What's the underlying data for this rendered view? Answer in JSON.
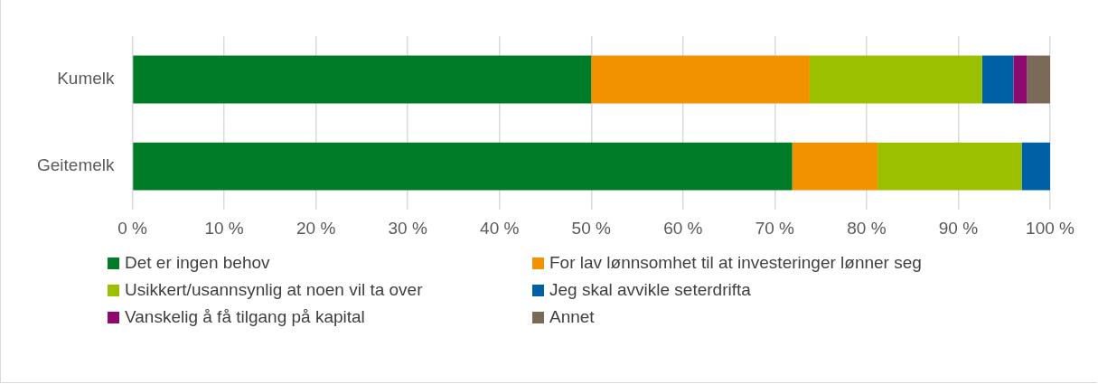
{
  "chart_data": {
    "type": "bar",
    "orientation": "horizontal",
    "stacked": true,
    "categories": [
      "Kumelk",
      "Geitemelk"
    ],
    "series": [
      {
        "name": "Det er ingen behov",
        "color": "#007c29",
        "values": [
          50.0,
          71.9
        ]
      },
      {
        "name": "For lav lønnsomhet til at investeringer lønner seg",
        "color": "#f39200",
        "values": [
          23.8,
          9.3
        ]
      },
      {
        "name": "Usikkert/usannsynlig at noen vil ta over",
        "color": "#9bc000",
        "values": [
          18.8,
          15.7
        ]
      },
      {
        "name": "Jeg skal avvikle seterdrifta",
        "color": "#0060a5",
        "values": [
          3.4,
          3.1
        ]
      },
      {
        "name": "Vanskelig å få tilgang på kapital",
        "color": "#8c0a6e",
        "values": [
          1.5,
          0
        ]
      },
      {
        "name": "Annet",
        "color": "#7b6a58",
        "values": [
          2.5,
          0
        ]
      }
    ],
    "xlim": [
      0,
      100
    ],
    "xticks": [
      {
        "value": 0,
        "label": "0 %"
      },
      {
        "value": 10,
        "label": "10 %"
      },
      {
        "value": 20,
        "label": "20 %"
      },
      {
        "value": 30,
        "label": "30 %"
      },
      {
        "value": 40,
        "label": "40 %"
      },
      {
        "value": 50,
        "label": "50 %"
      },
      {
        "value": 60,
        "label": "60 %"
      },
      {
        "value": 70,
        "label": "70 %"
      },
      {
        "value": 80,
        "label": "80 %"
      },
      {
        "value": 90,
        "label": "90 %"
      },
      {
        "value": 100,
        "label": "100 %"
      }
    ],
    "grid": "x",
    "legend": "bottom"
  }
}
